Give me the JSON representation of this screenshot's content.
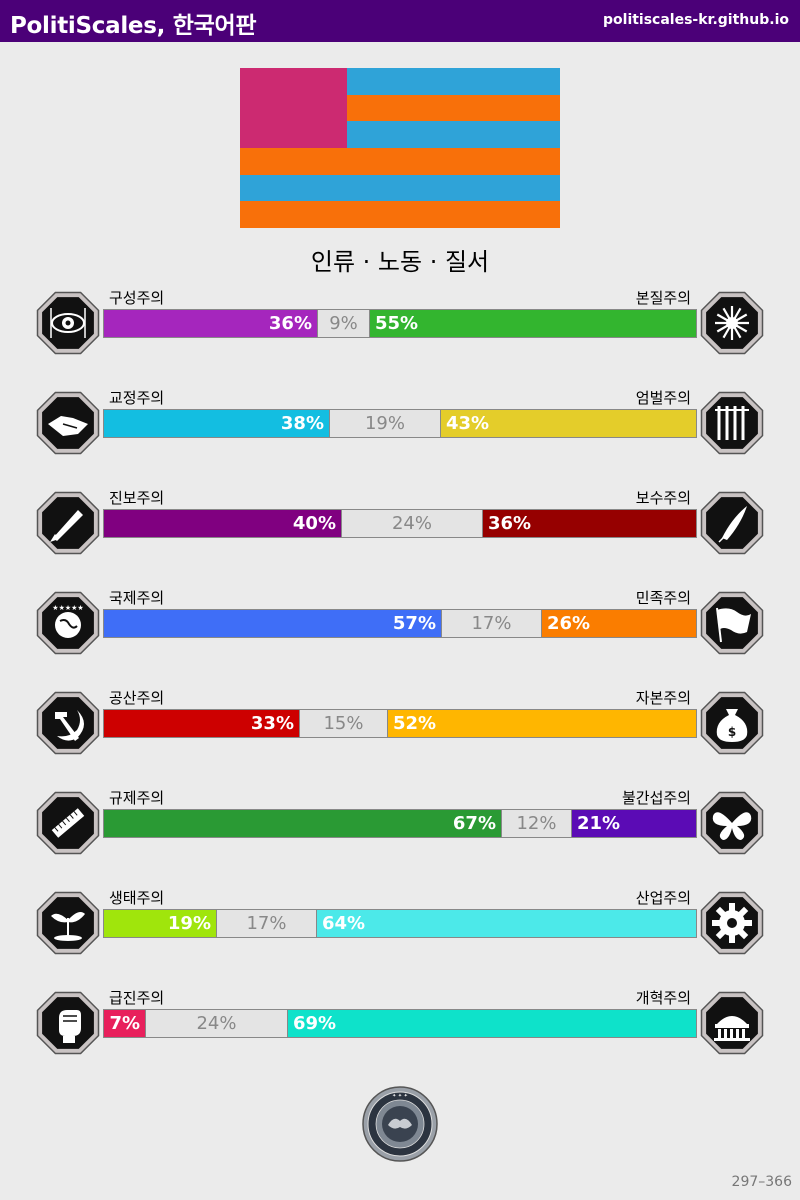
{
  "header": {
    "title": "PolitiScales, 한국어판",
    "site": "politiscales-kr.github.io",
    "background": "#4b0078"
  },
  "flag": {
    "canton_color": "#cc2a71",
    "stripes": [
      "#2fa3d8",
      "#f8700a",
      "#2fa3d8",
      "#f8700a",
      "#2fa3d8",
      "#f8700a"
    ]
  },
  "ideology_name": "인류 · 노동 · 질서",
  "axes": [
    {
      "left_label": "구성주의",
      "right_label": "본질주의",
      "left_value": 36,
      "middle_value": 9,
      "right_value": 55,
      "left_pct": "36%",
      "middle_pct": "9%",
      "right_pct": "55%",
      "left_color": "#a526bd",
      "right_color": "#33b52f",
      "left_icon": "eye-icon",
      "right_icon": "flower-icon"
    },
    {
      "left_label": "교정주의",
      "right_label": "엄벌주의",
      "left_value": 38,
      "middle_value": 19,
      "right_value": 43,
      "left_pct": "38%",
      "middle_pct": "19%",
      "right_pct": "43%",
      "left_color": "#13bee1",
      "right_color": "#e4cd2a",
      "left_icon": "handshake-icon",
      "right_icon": "prison-bars-icon"
    },
    {
      "left_label": "진보주의",
      "right_label": "보수주의",
      "left_value": 40,
      "middle_value": 24,
      "right_value": 36,
      "left_pct": "40%",
      "middle_pct": "24%",
      "right_pct": "36%",
      "left_color": "#800080",
      "right_color": "#960000",
      "left_icon": "rocket-icon",
      "right_icon": "quill-icon"
    },
    {
      "left_label": "국제주의",
      "right_label": "민족주의",
      "left_value": 57,
      "middle_value": 17,
      "right_value": 26,
      "left_pct": "57%",
      "middle_pct": "17%",
      "right_pct": "26%",
      "left_color": "#3f6ef7",
      "right_color": "#fa7d00",
      "left_icon": "globe-icon",
      "right_icon": "flag-icon"
    },
    {
      "left_label": "공산주의",
      "right_label": "자본주의",
      "left_value": 33,
      "middle_value": 15,
      "right_value": 52,
      "left_pct": "33%",
      "middle_pct": "15%",
      "right_pct": "52%",
      "left_color": "#cd0000",
      "right_color": "#ffb600",
      "left_icon": "hammer-sickle-icon",
      "right_icon": "money-bag-icon"
    },
    {
      "left_label": "규제주의",
      "right_label": "불간섭주의",
      "left_value": 67,
      "middle_value": 12,
      "right_value": 21,
      "left_pct": "67%",
      "middle_pct": "12%",
      "right_pct": "21%",
      "left_color": "#2a9a34",
      "right_color": "#5b0bb5",
      "left_icon": "ruler-icon",
      "right_icon": "butterfly-icon"
    },
    {
      "left_label": "생태주의",
      "right_label": "산업주의",
      "left_value": 19,
      "middle_value": 17,
      "right_value": 64,
      "left_pct": "19%",
      "middle_pct": "17%",
      "right_pct": "64%",
      "left_color": "#a0e50c",
      "right_color": "#4ce9e9",
      "left_icon": "sprout-icon",
      "right_icon": "gear-icon"
    },
    {
      "left_label": "급진주의",
      "right_label": "개혁주의",
      "left_value": 7,
      "middle_value": 24,
      "right_value": 69,
      "left_pct": "7%",
      "middle_pct": "24%",
      "right_pct": "69%",
      "left_color": "#e8205c",
      "right_color": "#0ee2ca",
      "left_icon": "fist-icon",
      "right_icon": "parliament-icon"
    }
  ],
  "seal_icon": "seal-icon",
  "footer": {
    "page_range": "297–366"
  }
}
